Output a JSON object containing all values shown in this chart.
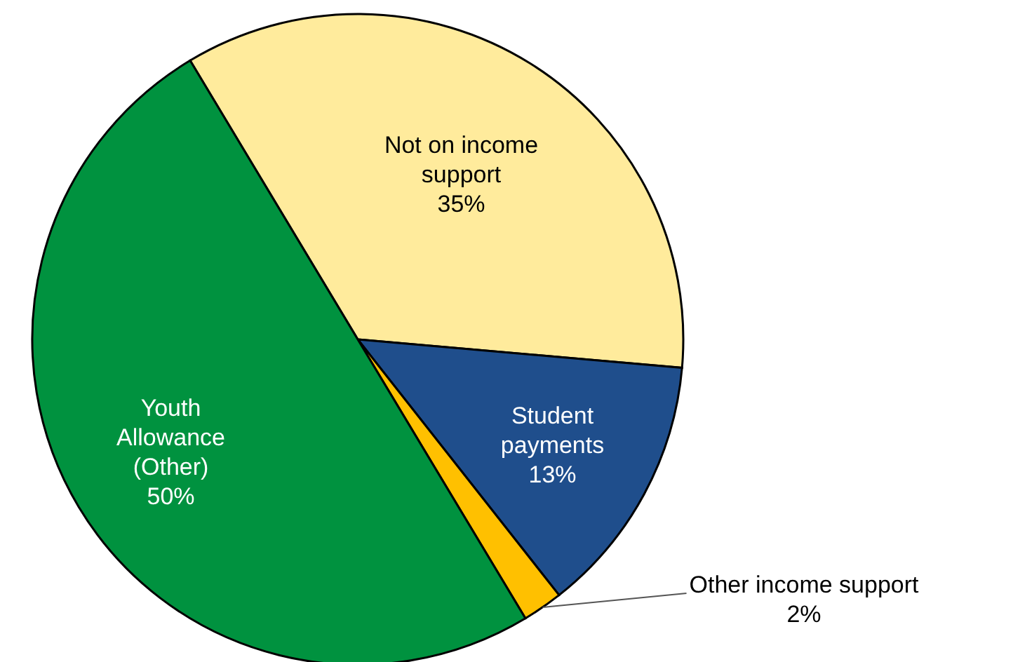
{
  "chart_data": {
    "type": "pie",
    "categories": [
      "Not on income support",
      "Student payments",
      "Other income support",
      "Youth Allowance (Other)"
    ],
    "values": [
      35,
      13,
      2,
      50
    ],
    "colors": [
      "#ffeb9c",
      "#1f4e8c",
      "#ffc000",
      "#00923f"
    ],
    "value_labels": [
      "35%",
      "13%",
      "2%",
      "50%"
    ]
  }
}
